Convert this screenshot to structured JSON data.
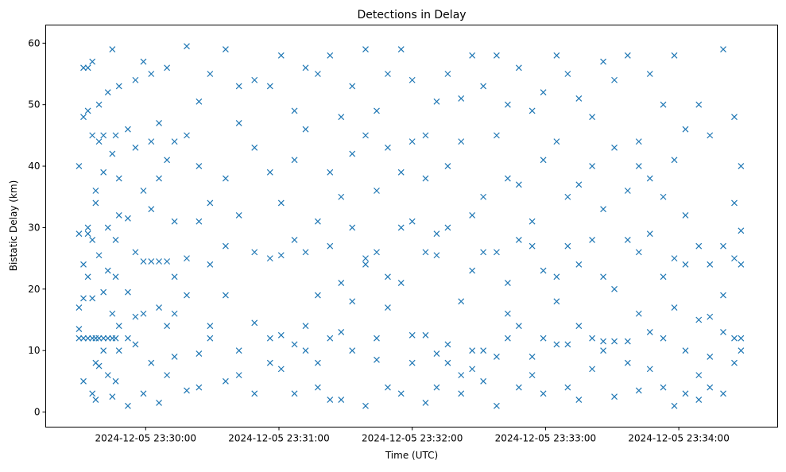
{
  "chart_data": {
    "type": "scatter",
    "title": "Detections in Delay",
    "xlabel": "Time (UTC)",
    "ylabel": "Bistatic Delay (km)",
    "x_unit": "seconds relative to 2024-12-05 23:30:00",
    "xlim": [
      -45,
      284.5
    ],
    "ylim": [
      -2.45,
      62.95
    ],
    "grid": false,
    "marker": "x",
    "color": "#1f77b4",
    "xticks": [
      {
        "value": 0,
        "label": "2024-12-05 23:30:00"
      },
      {
        "value": 60,
        "label": "2024-12-05 23:31:00"
      },
      {
        "value": 120,
        "label": "2024-12-05 23:32:00"
      },
      {
        "value": 180,
        "label": "2024-12-05 23:33:00"
      },
      {
        "value": 240,
        "label": "2024-12-05 23:34:00"
      }
    ],
    "yticks": [
      {
        "value": 0,
        "label": "0"
      },
      {
        "value": 10,
        "label": "10"
      },
      {
        "value": 20,
        "label": "20"
      },
      {
        "value": 30,
        "label": "30"
      },
      {
        "value": 40,
        "label": "40"
      },
      {
        "value": 50,
        "label": "50"
      },
      {
        "value": 60,
        "label": "60"
      }
    ],
    "points_by_time": [
      [
        -30,
        [
          40,
          29,
          17,
          13.5,
          12
        ]
      ],
      [
        -28,
        [
          48,
          56,
          24,
          18.5,
          12,
          5
        ]
      ],
      [
        -26,
        [
          56,
          49,
          30,
          22,
          12,
          29
        ]
      ],
      [
        -24,
        [
          57,
          45,
          28,
          3,
          12,
          18.5
        ]
      ],
      [
        -22.5,
        [
          34,
          36,
          12,
          8,
          2
        ]
      ],
      [
        -21,
        [
          50,
          44,
          25.5,
          12,
          7.5
        ]
      ],
      [
        -19,
        [
          45,
          39,
          19.5,
          12,
          10
        ]
      ],
      [
        -17,
        [
          52,
          30,
          12,
          6,
          23
        ]
      ],
      [
        -15,
        [
          59,
          42,
          12,
          16,
          2.5
        ]
      ],
      [
        -13.5,
        [
          45,
          22,
          12,
          5,
          28
        ]
      ],
      [
        -12,
        [
          53,
          38,
          32,
          10,
          14
        ]
      ],
      [
        -8,
        [
          46,
          31.5,
          19.5,
          1,
          12
        ]
      ],
      [
        -4.6,
        [
          54,
          43,
          15.5,
          26,
          11
        ]
      ],
      [
        -1,
        [
          57,
          36,
          24.5,
          3,
          16
        ]
      ],
      [
        2.5,
        [
          55,
          44,
          33,
          24.5,
          8
        ]
      ],
      [
        6,
        [
          47,
          38,
          24.5,
          17,
          1.5
        ]
      ],
      [
        9.6,
        [
          56,
          41,
          24.5,
          14,
          6
        ]
      ],
      [
        13,
        [
          44,
          31,
          22,
          16,
          9
        ]
      ],
      [
        18.5,
        [
          59.5,
          45,
          25,
          19,
          3.5
        ]
      ],
      [
        24,
        [
          50.5,
          40,
          31,
          9.5,
          4
        ]
      ],
      [
        29,
        [
          55,
          34,
          24,
          12,
          14
        ]
      ],
      [
        36,
        [
          59,
          38,
          27,
          19,
          5
        ]
      ],
      [
        42,
        [
          53,
          47,
          32,
          10,
          6
        ]
      ],
      [
        49,
        [
          54,
          43,
          26,
          3,
          14.5
        ]
      ],
      [
        56,
        [
          53,
          39,
          25,
          8,
          12
        ]
      ],
      [
        61,
        [
          58,
          34,
          25.5,
          12.5,
          7
        ]
      ],
      [
        67,
        [
          49,
          41,
          28,
          11,
          3
        ]
      ],
      [
        72,
        [
          56,
          46,
          26,
          14,
          10
        ]
      ],
      [
        77.5,
        [
          55,
          31,
          19,
          8,
          4
        ]
      ],
      [
        83,
        [
          58,
          39,
          27,
          2,
          12
        ]
      ],
      [
        88,
        [
          48,
          35,
          21,
          13,
          2
        ]
      ],
      [
        93,
        [
          53,
          42,
          30,
          18,
          10
        ]
      ],
      [
        99,
        [
          59,
          45,
          25,
          24,
          1
        ]
      ],
      [
        104,
        [
          49,
          36,
          26,
          8.5,
          12
        ]
      ],
      [
        109,
        [
          55,
          43,
          22,
          17,
          4
        ]
      ],
      [
        115,
        [
          59,
          39,
          30,
          21,
          3
        ]
      ],
      [
        120,
        [
          54,
          44,
          31,
          12.5,
          8
        ]
      ],
      [
        126,
        [
          45,
          38,
          26,
          12.5,
          1.5
        ]
      ],
      [
        131,
        [
          50.5,
          29,
          25.5,
          9.5,
          4
        ]
      ],
      [
        136,
        [
          55,
          40,
          30,
          11,
          8
        ]
      ],
      [
        142,
        [
          51,
          44,
          18,
          6,
          3
        ]
      ],
      [
        147,
        [
          58,
          32,
          23,
          10,
          7
        ]
      ],
      [
        152,
        [
          53,
          35,
          26,
          10,
          5
        ]
      ],
      [
        158,
        [
          58,
          45,
          26,
          9,
          1
        ]
      ],
      [
        163,
        [
          50,
          38,
          21,
          16,
          12
        ]
      ],
      [
        168,
        [
          56,
          37,
          28,
          14,
          4
        ]
      ],
      [
        174,
        [
          49,
          31,
          27,
          9,
          6
        ]
      ],
      [
        179,
        [
          52,
          41,
          23,
          12,
          3
        ]
      ],
      [
        185,
        [
          58,
          44,
          22,
          18,
          11
        ]
      ],
      [
        190,
        [
          55,
          35,
          27,
          11,
          4
        ]
      ],
      [
        195,
        [
          51,
          37,
          24,
          14,
          2
        ]
      ],
      [
        201,
        [
          48,
          40,
          28,
          7,
          12
        ]
      ],
      [
        206,
        [
          57,
          33,
          22,
          11.5,
          10
        ]
      ],
      [
        211,
        [
          54,
          43,
          20,
          11.5,
          2.5
        ]
      ],
      [
        217,
        [
          58,
          36,
          28,
          11.5,
          8
        ]
      ],
      [
        222,
        [
          44,
          40,
          26,
          16,
          3.5
        ]
      ],
      [
        227,
        [
          55,
          38,
          29,
          13,
          7
        ]
      ],
      [
        233,
        [
          50,
          35,
          22,
          12,
          4
        ]
      ],
      [
        238,
        [
          58,
          41,
          25,
          17,
          1
        ]
      ],
      [
        243,
        [
          46,
          32,
          24,
          10,
          3
        ]
      ],
      [
        249,
        [
          50,
          27,
          15,
          6,
          2
        ]
      ],
      [
        254,
        [
          45,
          24,
          15.5,
          9,
          4
        ]
      ],
      [
        260,
        [
          59,
          27,
          19,
          13,
          3
        ]
      ],
      [
        265,
        [
          48,
          34,
          25,
          12,
          8
        ]
      ],
      [
        268,
        [
          40,
          29.5,
          24,
          12,
          10
        ]
      ]
    ]
  }
}
